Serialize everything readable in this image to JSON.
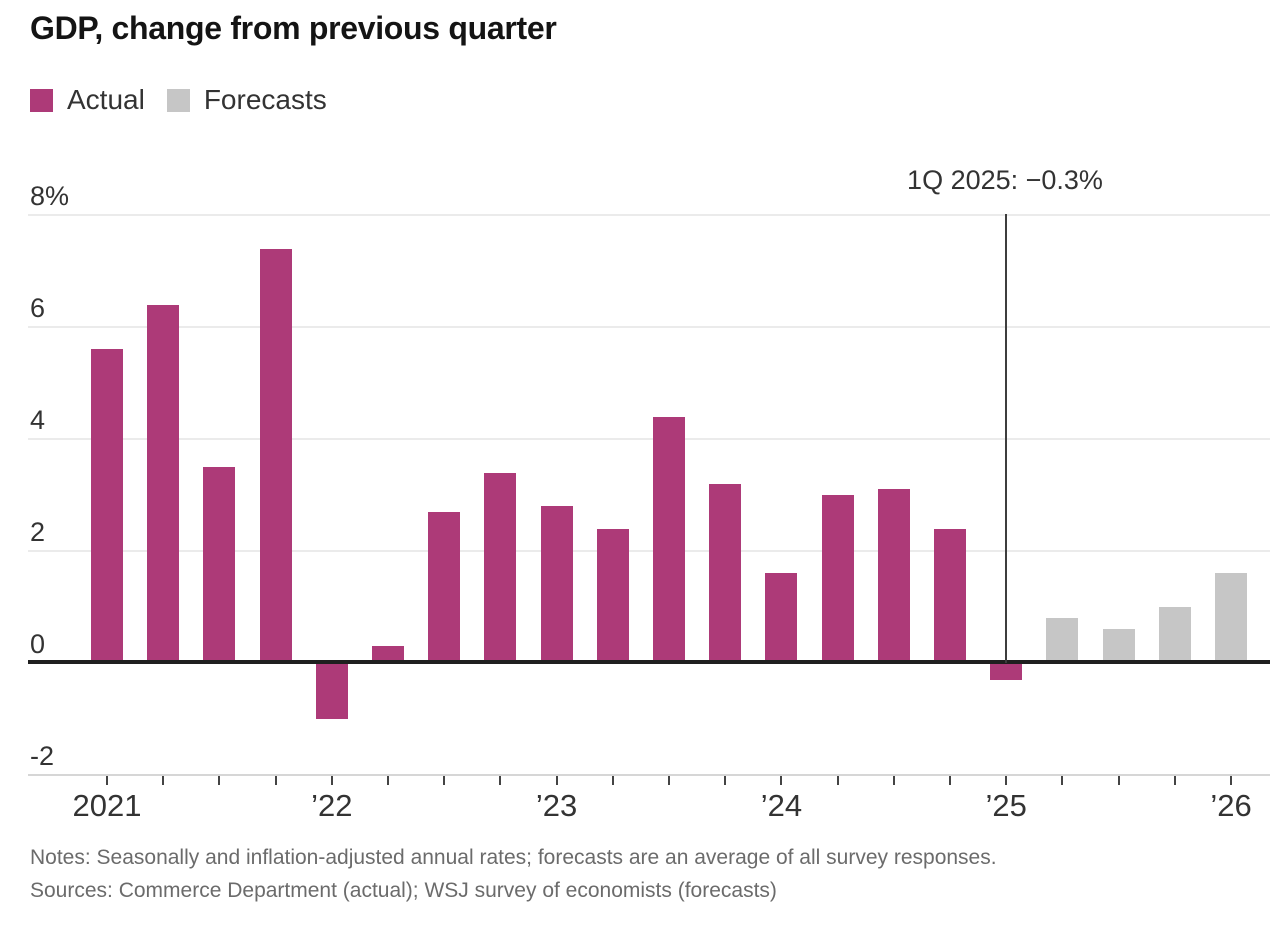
{
  "title": "GDP, change from previous quarter",
  "legend": [
    {
      "label": "Actual",
      "color": "#ad3a78"
    },
    {
      "label": "Forecasts",
      "color": "#c6c6c6"
    }
  ],
  "annotation": {
    "text": "1Q 2025: −0.3%"
  },
  "notes": "Notes: Seasonally and inflation-adjusted annual rates; forecasts are an average of all survey responses.",
  "sources": "Sources: Commerce Department (actual); WSJ survey of economists (forecasts)",
  "chart_data": {
    "type": "bar",
    "title": "GDP, change from previous quarter",
    "ylabel": "",
    "xlabel": "",
    "ylim": [
      -2,
      8
    ],
    "grid": "horizontal",
    "legend_position": "top-left",
    "y_ticks": [
      8,
      6,
      4,
      2,
      0,
      -2
    ],
    "y_tick_labels": [
      "8%",
      "6",
      "4",
      "2",
      "0",
      "-2"
    ],
    "x_year_labels": [
      "2021",
      "’22",
      "’23",
      "’24",
      "’25",
      "’26"
    ],
    "annotation": {
      "label": "1Q 2025: −0.3%",
      "at_quarter": "1Q 2025",
      "value": -0.3
    },
    "series": [
      {
        "name": "Actual",
        "color": "#ad3a78",
        "quarters": [
          "1Q 2021",
          "2Q 2021",
          "3Q 2021",
          "4Q 2021",
          "1Q 2022",
          "2Q 2022",
          "3Q 2022",
          "4Q 2022",
          "1Q 2023",
          "2Q 2023",
          "3Q 2023",
          "4Q 2023",
          "1Q 2024",
          "2Q 2024",
          "3Q 2024",
          "4Q 2024",
          "1Q 2025"
        ],
        "values": [
          5.6,
          6.4,
          3.5,
          7.4,
          -1.0,
          0.3,
          2.7,
          3.4,
          2.8,
          2.4,
          4.4,
          3.2,
          1.6,
          3.0,
          3.1,
          2.4,
          -0.3
        ]
      },
      {
        "name": "Forecasts",
        "color": "#c6c6c6",
        "quarters": [
          "2Q 2025",
          "3Q 2025",
          "4Q 2025",
          "1Q 2026"
        ],
        "values": [
          0.8,
          0.6,
          1.0,
          1.6
        ]
      }
    ]
  }
}
